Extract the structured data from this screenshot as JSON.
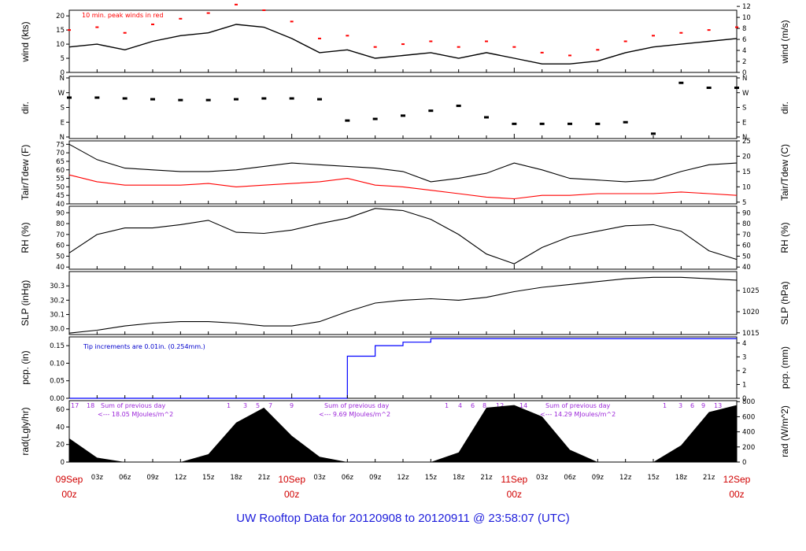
{
  "footer": "UW Rooftop Data for 20120908  to  20120911 @ 23:58:07  (UTC)",
  "x_axis": {
    "hour_ticks": [
      "03z",
      "06z",
      "09z",
      "12z",
      "15z",
      "18z",
      "21z",
      "03z",
      "06z",
      "09z",
      "12z",
      "15z",
      "18z",
      "21z",
      "03z",
      "06z",
      "09z",
      "12z",
      "15z",
      "18z",
      "21z"
    ],
    "day_labels": [
      {
        "date": "09Sep",
        "time": "00z"
      },
      {
        "date": "10Sep",
        "time": "00z"
      },
      {
        "date": "11Sep",
        "time": "00z"
      },
      {
        "date": "12Sep",
        "time": "00z"
      }
    ]
  },
  "panels": {
    "wind": {
      "left_label": "wind (kts)",
      "right_label": "wind (m/s)",
      "left_ticks": [
        "0",
        "5",
        "10",
        "15",
        "20"
      ],
      "right_ticks": [
        "0",
        "2",
        "4",
        "6",
        "8",
        "10",
        "12"
      ],
      "note": "10 min. peak winds in red"
    },
    "dir": {
      "left_label": "dir.",
      "right_label": "dir.",
      "left_ticks": [
        "N",
        "E",
        "S",
        "W",
        "N"
      ],
      "right_ticks": [
        "N",
        "E",
        "S",
        "W",
        "N"
      ]
    },
    "temp": {
      "left_label": "Tair/Tdew (F)",
      "right_label": "Tair/Tdew (C)",
      "left_ticks": [
        "40",
        "45",
        "50",
        "55",
        "60",
        "65",
        "70",
        "75"
      ],
      "right_ticks": [
        "5",
        "10",
        "15",
        "20",
        "25"
      ]
    },
    "rh": {
      "left_label": "RH (%)",
      "right_label": "RH (%)",
      "left_ticks": [
        "40",
        "50",
        "60",
        "70",
        "80",
        "90"
      ],
      "right_ticks": [
        "40",
        "50",
        "60",
        "70",
        "80",
        "90"
      ]
    },
    "slp": {
      "left_label": "SLP (inHg)",
      "right_label": "SLP (hPa)",
      "left_ticks": [
        "30.0",
        "30.1",
        "30.2",
        "30.3"
      ],
      "right_ticks": [
        "1015",
        "1020",
        "1025"
      ]
    },
    "pcp": {
      "left_label": "pcp. (in)",
      "right_label": "pcp. (mm)",
      "left_ticks": [
        "0.00",
        "0.05",
        "0.10",
        "0.15"
      ],
      "right_ticks": [
        "0",
        "1",
        "2",
        "3",
        "4"
      ],
      "note": "Tip increments are 0.01in. (0.254mm.)"
    },
    "rad": {
      "left_label": "rad(Lgly/hr)",
      "right_label": "rad (W/m^2)",
      "left_ticks": [
        "0",
        "20",
        "40",
        "60"
      ],
      "right_ticks": [
        "0",
        "200",
        "400",
        "600",
        "800"
      ],
      "hour_marks_day1": [
        "17",
        "18",
        "1",
        "3",
        "5",
        "7",
        "9"
      ],
      "hour_marks_day2": [
        "1",
        "4",
        "6",
        "8",
        "12",
        "14"
      ],
      "hour_marks_day3": [
        "1",
        "3",
        "6",
        "9",
        "13"
      ],
      "sums": [
        {
          "line1": "Sum of previous day",
          "line2": "<--- 18.05 MJoules/m^2"
        },
        {
          "line1": "Sum of previous day",
          "line2": "<--- 9.69 MJoules/m^2"
        },
        {
          "line1": "Sum of previous day",
          "line2": "<--- 14.29 MJoules/m^2"
        }
      ]
    }
  },
  "chart_data": {
    "type": "line",
    "x": [
      "09Sep 00z",
      "09Sep 06z",
      "09Sep 12z",
      "09Sep 18z",
      "10Sep 00z",
      "10Sep 06z",
      "10Sep 12z",
      "10Sep 18z",
      "11Sep 00z",
      "11Sep 06z",
      "11Sep 12z",
      "11Sep 18z",
      "12Sep 00z"
    ],
    "colors": {
      "tair": "#000000",
      "tdew": "#ff0000",
      "peak": "#ff0000",
      "precip": "#0000ff",
      "rad": "#000000",
      "day_labels": "#ff0000",
      "footer": "#1d1ddb",
      "rad_text": "#9c27d9"
    },
    "wind_kts": [
      9,
      10,
      8,
      11,
      13,
      14,
      17,
      16,
      12,
      7,
      8,
      5,
      6,
      7,
      5,
      7,
      5,
      3,
      3,
      4,
      7,
      9,
      10,
      11,
      12
    ],
    "wind_peak_kts": [
      15,
      16,
      14,
      17,
      19,
      21,
      24,
      22,
      18,
      12,
      13,
      9,
      10,
      11,
      9,
      11,
      9,
      7,
      6,
      8,
      11,
      13,
      14,
      15,
      16
    ],
    "dir_deg": [
      240,
      240,
      235,
      230,
      225,
      225,
      230,
      235,
      235,
      230,
      100,
      110,
      130,
      160,
      190,
      120,
      80,
      80,
      80,
      80,
      90,
      20,
      330,
      300,
      300
    ],
    "tair_f": [
      75,
      66,
      61,
      60,
      59,
      59,
      60,
      62,
      64,
      63,
      62,
      61,
      59,
      53,
      55,
      58,
      64,
      60,
      55,
      54,
      53,
      54,
      59,
      63,
      64
    ],
    "tdew_f": [
      57,
      53,
      51,
      51,
      51,
      52,
      50,
      51,
      52,
      53,
      55,
      51,
      50,
      48,
      46,
      44,
      43,
      45,
      45,
      46,
      46,
      46,
      47,
      46,
      45
    ],
    "rh_pct": [
      53,
      70,
      76,
      76,
      79,
      83,
      72,
      71,
      74,
      80,
      85,
      94,
      92,
      84,
      70,
      52,
      43,
      58,
      68,
      73,
      78,
      79,
      73,
      55,
      47
    ],
    "slp_inhg": [
      29.97,
      29.99,
      30.02,
      30.04,
      30.05,
      30.05,
      30.04,
      30.02,
      30.02,
      30.05,
      30.12,
      30.18,
      30.2,
      30.21,
      30.2,
      30.22,
      30.26,
      30.29,
      30.31,
      30.33,
      30.35,
      30.36,
      30.36,
      30.35,
      30.34
    ],
    "precip_in": [
      0,
      0,
      0,
      0,
      0,
      0,
      0,
      0,
      0,
      0,
      0.12,
      0.15,
      0.16,
      0.17,
      0.17,
      0.17,
      0.17,
      0.17,
      0.17,
      0.17,
      0.17,
      0.17,
      0.17,
      0.17,
      0.17
    ],
    "rad_lgly": [
      27,
      5,
      0,
      0,
      0,
      9,
      45,
      62,
      30,
      6,
      0,
      0,
      0,
      0,
      11,
      62,
      65,
      52,
      14,
      0,
      0,
      0,
      19,
      57,
      65
    ]
  }
}
